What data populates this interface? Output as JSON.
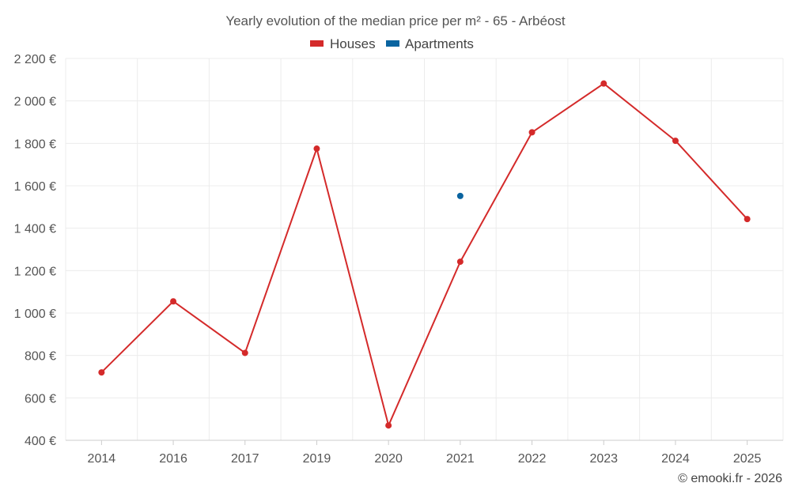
{
  "chart_data": {
    "type": "line",
    "title": "Yearly evolution of the median price per m² - 65 - Arbéost",
    "categories": [
      "2014",
      "2016",
      "2017",
      "2019",
      "2020",
      "2021",
      "2022",
      "2023",
      "2024",
      "2025"
    ],
    "series": [
      {
        "name": "Houses",
        "color": "#d42a2a",
        "values": [
          720,
          1055,
          812,
          1775,
          470,
          1242,
          1852,
          2082,
          1812,
          1443
        ]
      },
      {
        "name": "Apartments",
        "color": "#0a64a0",
        "values": [
          null,
          null,
          null,
          null,
          null,
          1552,
          null,
          null,
          null,
          null
        ]
      }
    ],
    "ylim": [
      400,
      2200
    ],
    "yticks": [
      400,
      600,
      800,
      1000,
      1200,
      1400,
      1600,
      1800,
      2000,
      2200
    ],
    "ytick_labels": [
      "400 €",
      "600 €",
      "800 €",
      "1 000 €",
      "1 200 €",
      "1 400 €",
      "1 600 €",
      "1 800 €",
      "2 000 €",
      "2 200 €"
    ],
    "xlabel": "",
    "ylabel": "",
    "grid": true,
    "legend_position": "top-center"
  },
  "credit": "© emooki.fr - 2026"
}
